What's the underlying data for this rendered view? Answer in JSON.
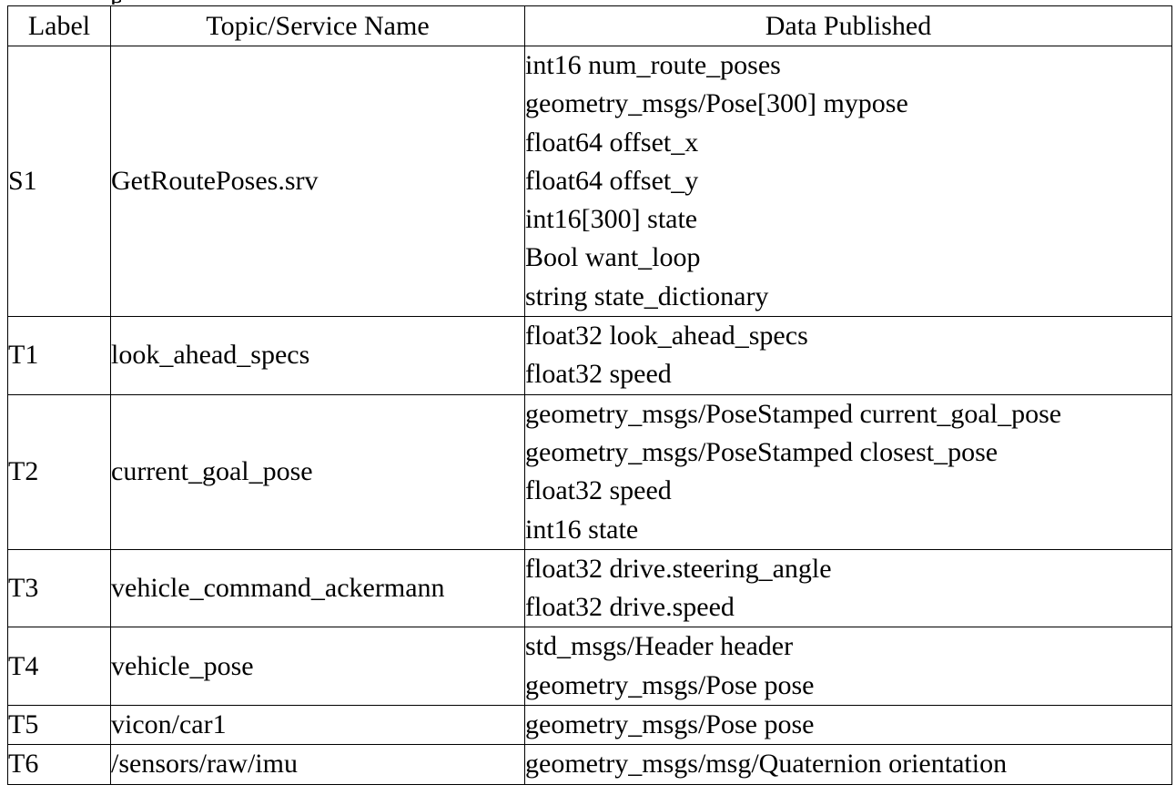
{
  "table": {
    "headers": {
      "label": "Label",
      "topic": "Topic/Service Name",
      "data": "Data Published"
    },
    "rows": [
      {
        "label": "S1",
        "topic": "GetRoutePoses.srv",
        "data": [
          "int16 num_route_poses",
          "geometry_msgs/Pose[300] mypose",
          "float64 offset_x",
          "float64 offset_y",
          "int16[300] state",
          "Bool want_loop",
          "string state_dictionary"
        ]
      },
      {
        "label": "T1",
        "topic": "look_ahead_specs",
        "data": [
          "float32 look_ahead_specs",
          "float32 speed"
        ]
      },
      {
        "label": "T2",
        "topic": "current_goal_pose",
        "data": [
          "geometry_msgs/PoseStamped current_goal_pose",
          "geometry_msgs/PoseStamped closest_pose",
          "float32 speed",
          "int16 state"
        ]
      },
      {
        "label": "T3",
        "topic": "vehicle_command_ackermann",
        "data": [
          "float32 drive.steering_angle",
          "float32 drive.speed"
        ]
      },
      {
        "label": "T4",
        "topic": "vehicle_pose",
        "data": [
          "std_msgs/Header header",
          "geometry_msgs/Pose pose"
        ]
      },
      {
        "label": "T5",
        "topic": "vicon/car1",
        "data": [
          "geometry_msgs/Pose pose"
        ]
      },
      {
        "label": "T6",
        "topic": "/sensors/raw/imu",
        "data": [
          "geometry_msgs/msg/Quaternion orientation"
        ]
      }
    ]
  }
}
